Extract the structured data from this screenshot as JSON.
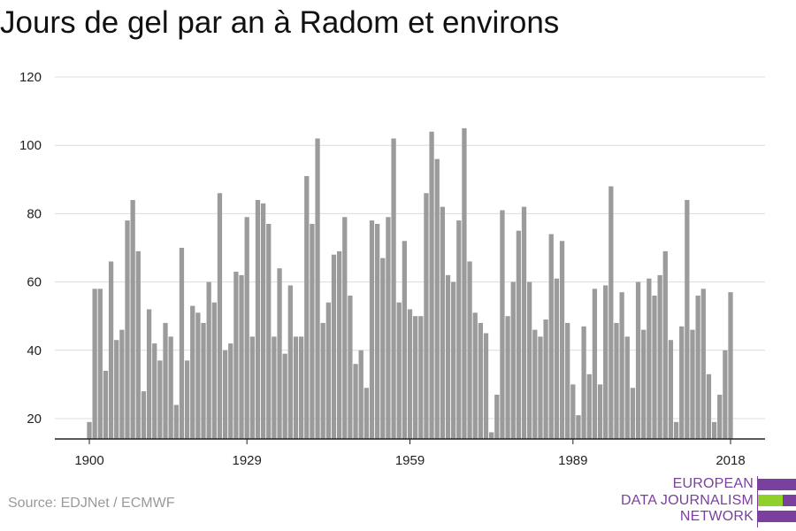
{
  "chart_data": {
    "type": "bar",
    "title": "Jours de gel par an à Radom et environs",
    "xlabel": "",
    "ylabel": "",
    "ylim": [
      14,
      120
    ],
    "yticks": [
      20,
      40,
      60,
      80,
      100,
      120
    ],
    "xticks": [
      1900,
      1929,
      1959,
      1989,
      2018
    ],
    "grid": "horizontal",
    "legend": "none",
    "bar_color": "#9b9b9b",
    "x": [
      1900,
      1901,
      1902,
      1903,
      1904,
      1905,
      1906,
      1907,
      1908,
      1909,
      1910,
      1911,
      1912,
      1913,
      1914,
      1915,
      1916,
      1917,
      1918,
      1919,
      1920,
      1921,
      1922,
      1923,
      1924,
      1925,
      1926,
      1927,
      1928,
      1929,
      1930,
      1931,
      1932,
      1933,
      1934,
      1935,
      1936,
      1937,
      1938,
      1939,
      1940,
      1941,
      1942,
      1943,
      1944,
      1945,
      1946,
      1947,
      1948,
      1949,
      1950,
      1951,
      1952,
      1953,
      1954,
      1955,
      1956,
      1957,
      1958,
      1959,
      1960,
      1961,
      1962,
      1963,
      1964,
      1965,
      1966,
      1967,
      1968,
      1969,
      1970,
      1971,
      1972,
      1973,
      1974,
      1975,
      1976,
      1977,
      1978,
      1979,
      1980,
      1981,
      1982,
      1983,
      1984,
      1985,
      1986,
      1987,
      1988,
      1989,
      1990,
      1991,
      1992,
      1993,
      1994,
      1995,
      1996,
      1997,
      1998,
      1999,
      2000,
      2001,
      2002,
      2003,
      2004,
      2005,
      2006,
      2007,
      2008,
      2009,
      2010,
      2011,
      2012,
      2013,
      2014,
      2015,
      2016,
      2017,
      2018
    ],
    "values": [
      19,
      58,
      58,
      34,
      66,
      43,
      46,
      78,
      84,
      69,
      28,
      52,
      42,
      37,
      48,
      44,
      24,
      70,
      37,
      53,
      51,
      48,
      60,
      54,
      86,
      40,
      42,
      63,
      62,
      79,
      44,
      84,
      83,
      77,
      44,
      64,
      39,
      59,
      44,
      44,
      91,
      77,
      102,
      48,
      54,
      68,
      69,
      79,
      56,
      36,
      40,
      29,
      78,
      77,
      67,
      79,
      102,
      54,
      72,
      52,
      50,
      50,
      86,
      104,
      96,
      82,
      62,
      60,
      78,
      105,
      66,
      51,
      48,
      45,
      16,
      27,
      81,
      50,
      60,
      75,
      82,
      60,
      46,
      44,
      49,
      74,
      61,
      72,
      48,
      30,
      21,
      47,
      33,
      58,
      30,
      59,
      88,
      48,
      57,
      44,
      29,
      60,
      46,
      61,
      56,
      62,
      69,
      43,
      19,
      47,
      84,
      46,
      56,
      58,
      33,
      19,
      27,
      40,
      57
    ]
  },
  "source": "Source: EDJNet / ECMWF",
  "logo": {
    "line1": "EUROPEAN",
    "line2": "DATA JOURNALISM",
    "line3": "NETWORK",
    "color_purple": "#7b3f9e",
    "color_green": "#8fd12a"
  }
}
